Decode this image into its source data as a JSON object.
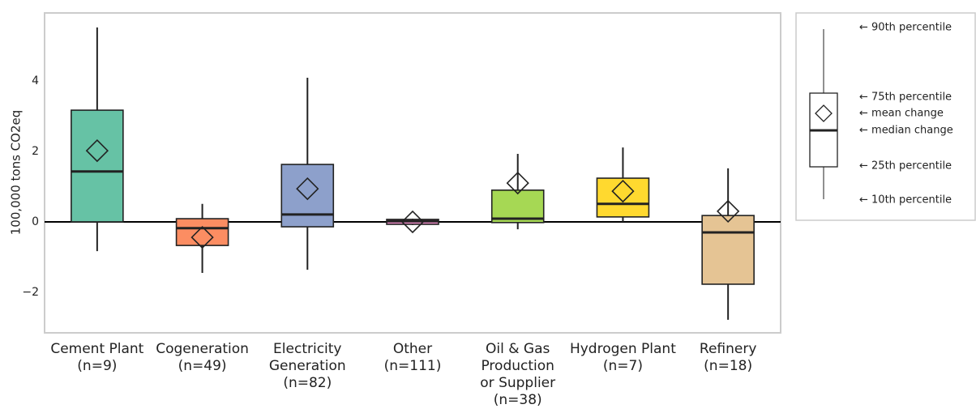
{
  "chart_data": {
    "type": "box",
    "y_label": "100,000 tons CO2eq",
    "categories": [
      [
        "Cement Plant",
        "(n=9)"
      ],
      [
        "Cogeneration",
        "(n=49)"
      ],
      [
        "Electricity",
        "Generation",
        "(n=82)"
      ],
      [
        "Other",
        "(n=111)"
      ],
      [
        "Oil & Gas",
        "Production",
        "or Supplier",
        "(n=38)"
      ],
      [
        "Hydrogen Plant",
        "(n=7)"
      ],
      [
        "Refinery",
        "(n=18)"
      ]
    ],
    "colors": [
      "#66c2a5",
      "#fc8d62",
      "#8da0cb",
      "#e78ac3",
      "#a6d854",
      "#ffd92f",
      "#e5c494"
    ],
    "boxes": [
      {
        "low": -0.83,
        "q1": 0,
        "median": 1.43,
        "q3": 3.17,
        "high": 5.52,
        "mean": 2.02
      },
      {
        "low": -1.45,
        "q1": -0.67,
        "median": -0.18,
        "q3": 0.09,
        "high": 0.51,
        "mean": -0.44
      },
      {
        "low": -1.36,
        "q1": -0.14,
        "median": 0.21,
        "q3": 1.63,
        "high": 4.09,
        "mean": 0.94
      },
      {
        "low": -0.09,
        "q1": -0.07,
        "median": 0.02,
        "q3": 0.07,
        "high": 0.09,
        "mean": 0.0
      },
      {
        "low": -0.21,
        "q1": -0.02,
        "median": 0.09,
        "q3": 0.9,
        "high": 1.93,
        "mean": 1.1
      },
      {
        "low": 0,
        "q1": 0.14,
        "median": 0.51,
        "q3": 1.24,
        "high": 2.11,
        "mean": 0.87
      },
      {
        "low": -2.78,
        "q1": -1.77,
        "median": -0.3,
        "q3": 0.18,
        "high": 1.52,
        "mean": 0.3
      }
    ],
    "ylim": [
      -3.15,
      5.93
    ],
    "yticks": [
      {
        "value": -2,
        "label": "−2"
      },
      0,
      2,
      4
    ],
    "reference_line": 0,
    "grid": false,
    "legend": {
      "labels": [
        "← 90th percentile",
        "← 75th percentile",
        "← mean change",
        "← median change",
        "← 25th percentile",
        "← 10th percentile"
      ]
    }
  }
}
